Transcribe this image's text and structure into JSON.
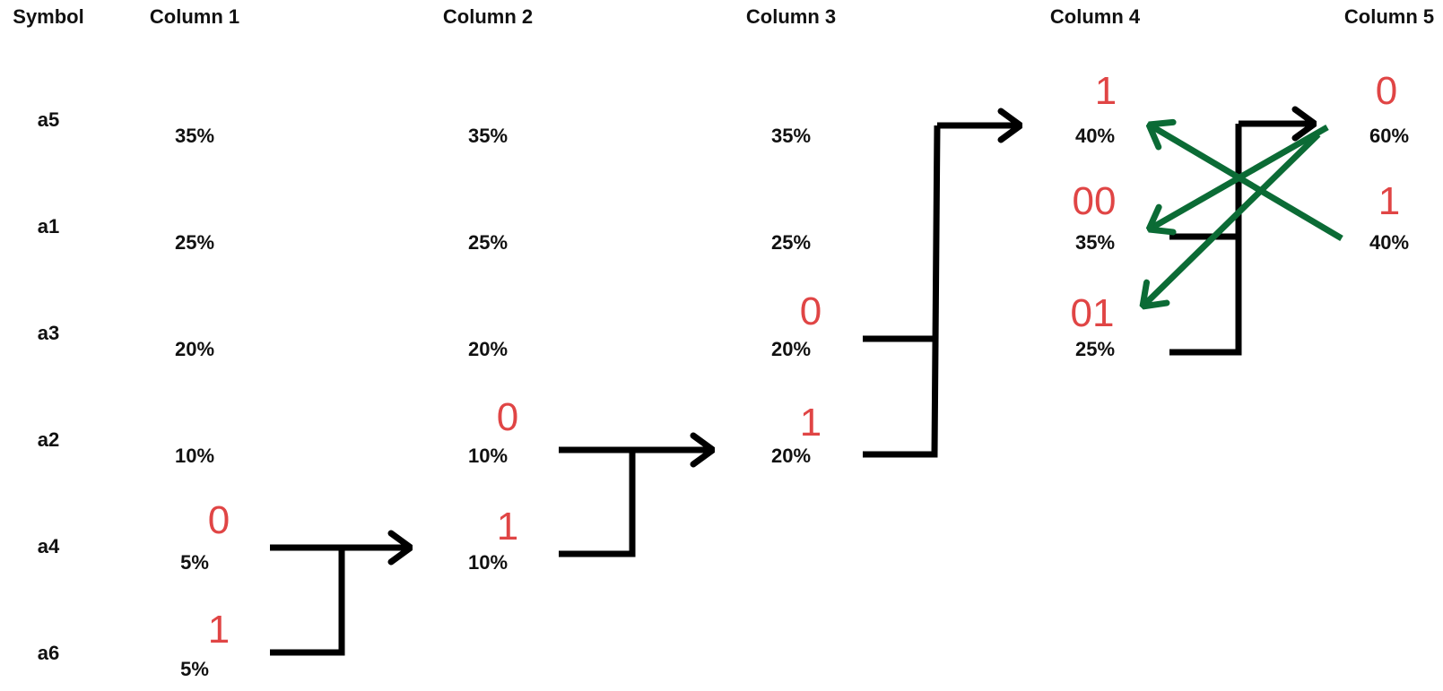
{
  "headers": {
    "symbol": "Symbol",
    "col1": "Column 1",
    "col2": "Column 2",
    "col3": "Column 3",
    "col4": "Column 4",
    "col5": "Column 5"
  },
  "symbols": [
    "a5",
    "a1",
    "a3",
    "a2",
    "a4",
    "a6"
  ],
  "column1": [
    "35%",
    "25%",
    "20%",
    "10%",
    "5%",
    "5%"
  ],
  "column2": [
    "35%",
    "25%",
    "20%",
    "10%",
    "10%"
  ],
  "column3": [
    "35%",
    "25%",
    "20%",
    "20%"
  ],
  "column4": [
    "40%",
    "35%",
    "25%"
  ],
  "column5": [
    "60%",
    "40%"
  ],
  "codes": {
    "c1_a4": "0",
    "c1_a6": "1",
    "c2_upper": "0",
    "c2_lower": "1",
    "c3_upper": "0",
    "c3_lower": "1",
    "c4_top": "1",
    "c4_mid": "00",
    "c4_bot": "01",
    "c5_top": "0",
    "c5_bot": "1"
  },
  "colors": {
    "text": "#111111",
    "code": "#e04545",
    "merge_line": "#000000",
    "backtrack_arrow": "#0b6b35"
  }
}
